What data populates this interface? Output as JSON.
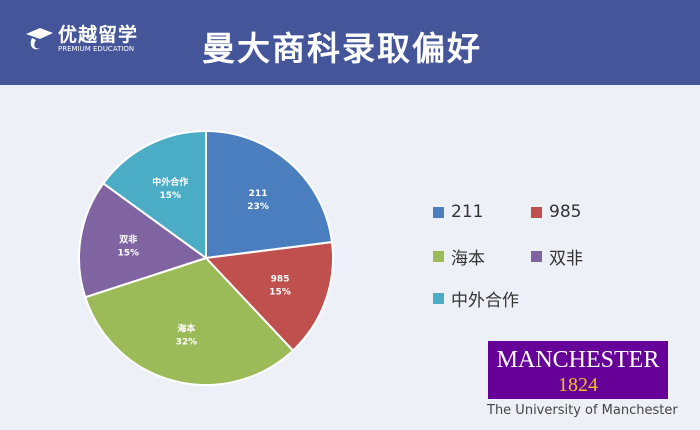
{
  "header": {
    "logo_cn": "优越留学",
    "logo_en": "PREMIUM EDUCATION",
    "title": "曼大商科录取偏好"
  },
  "chart_data": {
    "type": "pie",
    "start": "12 o'clock, clockwise",
    "slices": [
      {
        "label": "211",
        "value": 23,
        "display": "23%",
        "color": "#4a7ebf"
      },
      {
        "label": "985",
        "value": 15,
        "display": "15%",
        "color": "#c0504d"
      },
      {
        "label": "海本",
        "value": 32,
        "display": "32%",
        "color": "#9bbb59"
      },
      {
        "label": "双非",
        "value": 15,
        "display": "15%",
        "color": "#8064a2"
      },
      {
        "label": "中外合作",
        "value": 15,
        "display": "15%",
        "color": "#4bacc6"
      }
    ],
    "legend": {
      "placement": "right",
      "entries": [
        "211",
        "985",
        "海本",
        "双非",
        "中外合作"
      ]
    }
  },
  "brand": {
    "name": "MANCHESTER",
    "year": "1824",
    "full": "The University of Manchester",
    "color": "#660099"
  }
}
